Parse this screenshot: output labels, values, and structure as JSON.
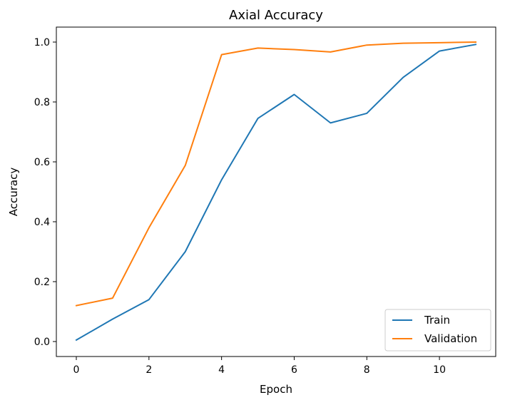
{
  "chart_data": {
    "type": "line",
    "title": "Axial Accuracy",
    "xlabel": "Epoch",
    "ylabel": "Accuracy",
    "xlim": [
      -0.55,
      11.55
    ],
    "ylim": [
      -0.05,
      1.05
    ],
    "xticks": [
      0,
      2,
      4,
      6,
      8,
      10
    ],
    "yticks": [
      0.0,
      0.2,
      0.4,
      0.6,
      0.8,
      1.0
    ],
    "xtick_labels": [
      "0",
      "2",
      "4",
      "6",
      "8",
      "10"
    ],
    "ytick_labels": [
      "0.0",
      "0.2",
      "0.4",
      "0.6",
      "0.8",
      "1.0"
    ],
    "grid": false,
    "legend_position": "lower-right",
    "x": [
      0,
      1,
      2,
      3,
      4,
      5,
      6,
      7,
      8,
      9,
      10,
      11
    ],
    "series": [
      {
        "name": "Train",
        "color": "#1f77b4",
        "values": [
          0.005,
          0.075,
          0.14,
          0.3,
          0.54,
          0.745,
          0.825,
          0.73,
          0.762,
          0.882,
          0.97,
          0.992
        ]
      },
      {
        "name": "Validation",
        "color": "#ff7f0e",
        "values": [
          0.12,
          0.145,
          0.38,
          0.588,
          0.958,
          0.98,
          0.975,
          0.967,
          0.99,
          0.996,
          0.998,
          1.0
        ]
      }
    ]
  }
}
